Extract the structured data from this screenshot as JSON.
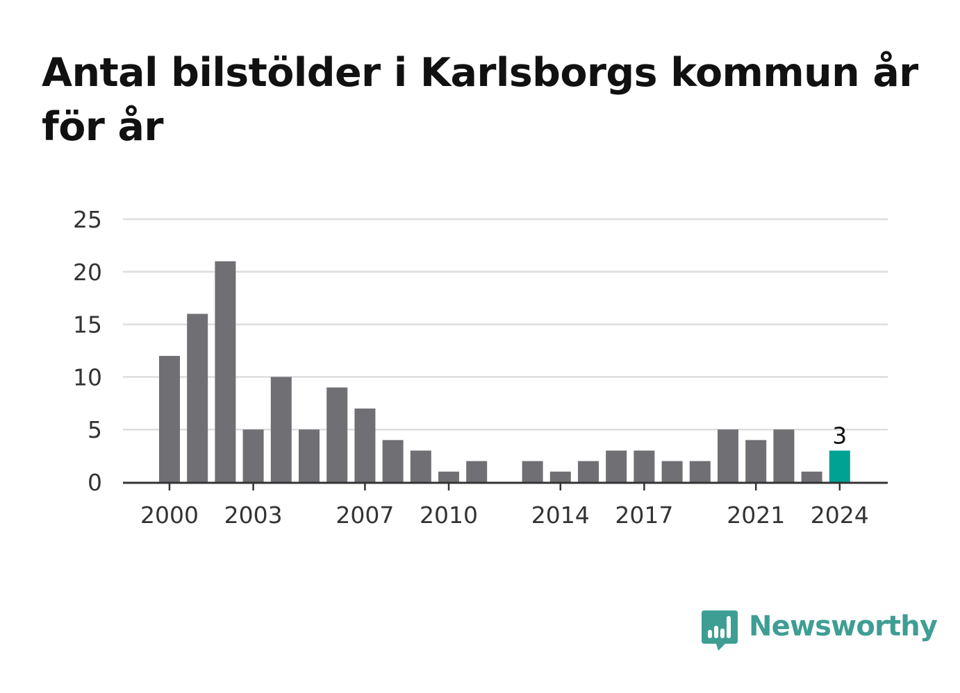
{
  "title": "Antal bilstölder i Karlsborgs kommun år för år",
  "brand": {
    "name": "Newsworthy",
    "logo_icon": "bar-chart-speech-bubble-icon",
    "color": "#3f9e94"
  },
  "colors": {
    "bar": "#706f74",
    "highlight": "#00a294",
    "grid": "#dddddd",
    "axis": "#333333",
    "text": "#333333"
  },
  "chart_data": {
    "type": "bar",
    "title": "Antal bilstölder i Karlsborgs kommun år för år",
    "xlabel": "",
    "ylabel": "",
    "categories": [
      "2000",
      "2001",
      "2002",
      "2003",
      "2004",
      "2005",
      "2006",
      "2007",
      "2008",
      "2009",
      "2010",
      "2011",
      "2012",
      "2013",
      "2014",
      "2015",
      "2016",
      "2017",
      "2018",
      "2019",
      "2020",
      "2021",
      "2022",
      "2023",
      "2024"
    ],
    "values": [
      12,
      16,
      21,
      5,
      10,
      5,
      9,
      7,
      4,
      3,
      1,
      2,
      0,
      2,
      1,
      2,
      3,
      3,
      2,
      2,
      5,
      4,
      5,
      1,
      3
    ],
    "ylim": [
      0,
      25
    ],
    "yticks": [
      "0",
      "5",
      "10",
      "15",
      "20",
      "25"
    ],
    "xtick_labels": [
      "2000",
      "2003",
      "2007",
      "2010",
      "2014",
      "2017",
      "2021",
      "2024"
    ],
    "highlight": {
      "category": "2024",
      "label": "3"
    },
    "grid": true
  }
}
